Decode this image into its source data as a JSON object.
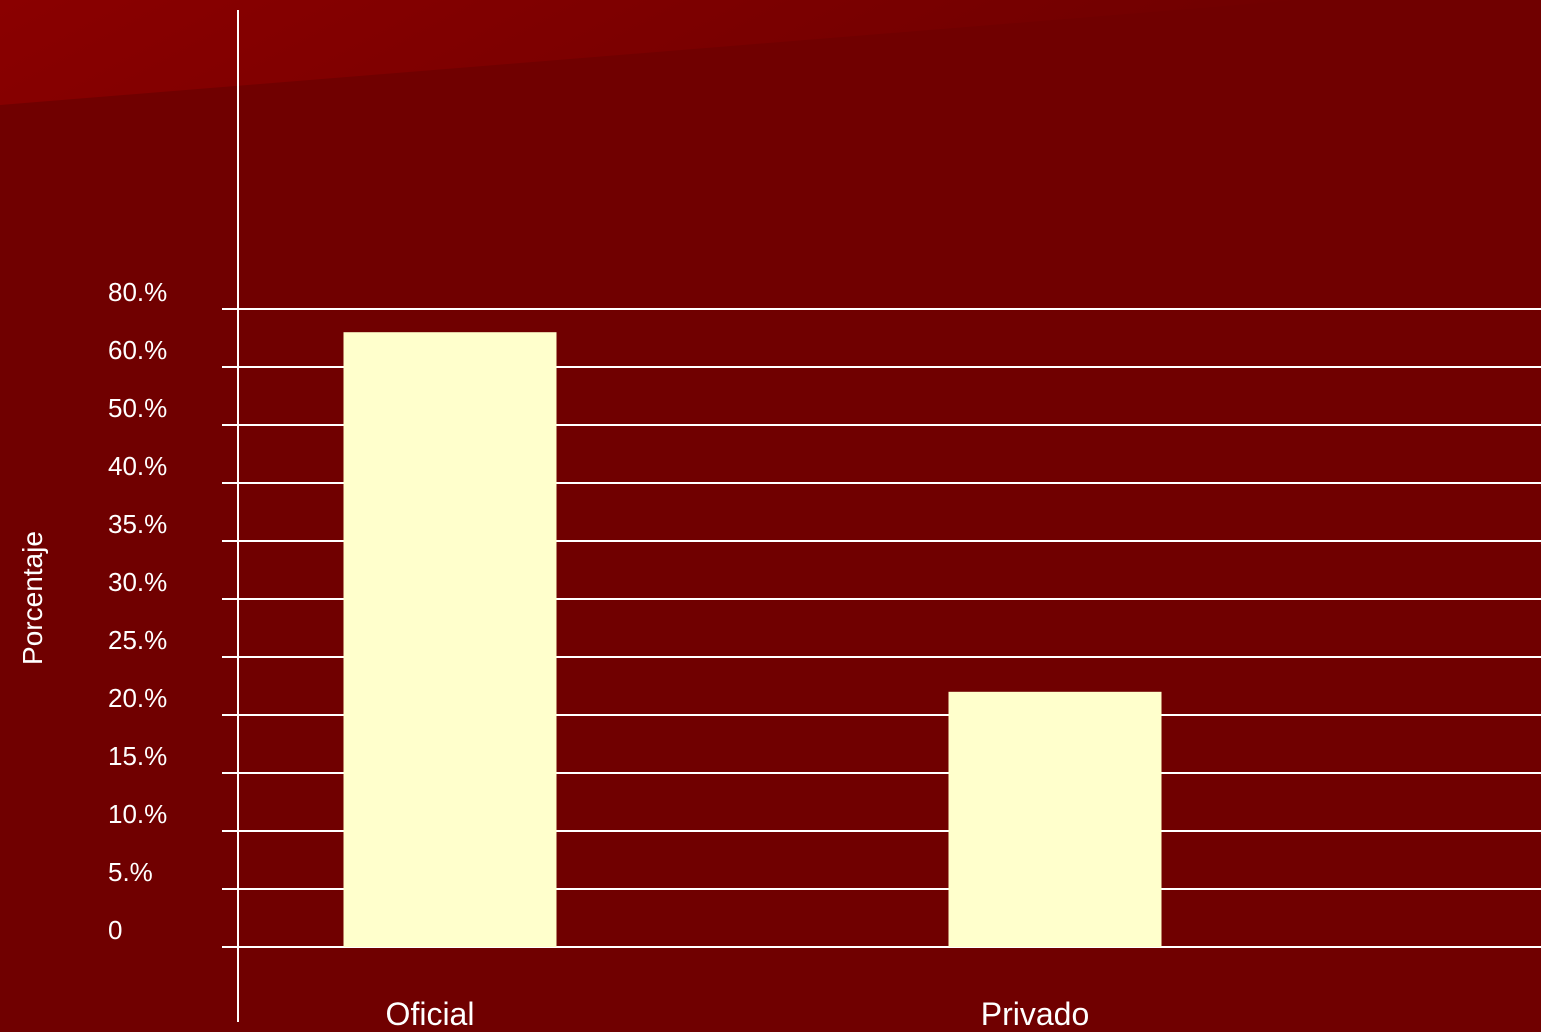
{
  "colors": {
    "background": "#700000",
    "background_highlight": "#8a0000",
    "bar_fill": "#ffffcc",
    "axis_and_grid": "#ffffff",
    "text": "#ffffff"
  },
  "chart_data": {
    "type": "bar",
    "title": "",
    "xlabel": "",
    "ylabel": "Porcentaje",
    "categories": [
      "Oficial",
      "Privado"
    ],
    "series": [
      {
        "values": [
          72,
          22
        ]
      }
    ],
    "y_tick_labels": [
      "0",
      "5.%",
      "10.%",
      "15.%",
      "20.%",
      "25.%",
      "30.%",
      "35.%",
      "40.%",
      "50.%",
      "60.%",
      "80.%"
    ],
    "grid": true,
    "legend": "none"
  }
}
